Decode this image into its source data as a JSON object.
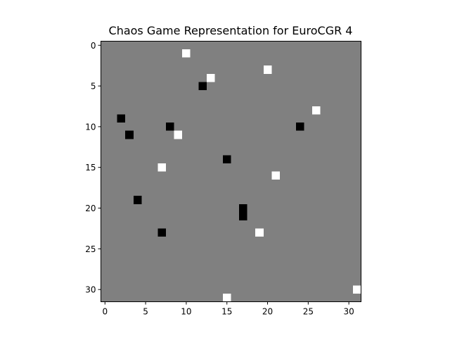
{
  "chart_data": {
    "type": "heatmap",
    "title": "Chaos Game Representation for EuroCGR 4",
    "xlabel": "",
    "ylabel": "",
    "grid_size": 32,
    "xlim": [
      -0.5,
      31.5
    ],
    "ylim": [
      31.5,
      -0.5
    ],
    "x_ticks": [
      0,
      5,
      10,
      15,
      20,
      25,
      30
    ],
    "y_ticks": [
      0,
      5,
      10,
      15,
      20,
      25,
      30
    ],
    "grid": false,
    "colors": {
      "background": "#808080",
      "high": "#ffffff",
      "low": "#000000"
    },
    "background_value": 0,
    "cells": [
      {
        "x": 10,
        "y": 1,
        "value": 1
      },
      {
        "x": 20,
        "y": 3,
        "value": 1
      },
      {
        "x": 13,
        "y": 4,
        "value": 1
      },
      {
        "x": 12,
        "y": 5,
        "value": -1
      },
      {
        "x": 26,
        "y": 8,
        "value": 1
      },
      {
        "x": 2,
        "y": 9,
        "value": -1
      },
      {
        "x": 8,
        "y": 10,
        "value": -1
      },
      {
        "x": 24,
        "y": 10,
        "value": -1
      },
      {
        "x": 3,
        "y": 11,
        "value": -1
      },
      {
        "x": 9,
        "y": 11,
        "value": 1
      },
      {
        "x": 15,
        "y": 14,
        "value": -1
      },
      {
        "x": 7,
        "y": 15,
        "value": 1
      },
      {
        "x": 21,
        "y": 16,
        "value": 1
      },
      {
        "x": 4,
        "y": 19,
        "value": -1
      },
      {
        "x": 17,
        "y": 20,
        "value": -1
      },
      {
        "x": 17,
        "y": 21,
        "value": -1
      },
      {
        "x": 7,
        "y": 23,
        "value": -1
      },
      {
        "x": 19,
        "y": 23,
        "value": 1
      },
      {
        "x": 31,
        "y": 30,
        "value": 1
      },
      {
        "x": 15,
        "y": 31,
        "value": 1
      }
    ]
  }
}
